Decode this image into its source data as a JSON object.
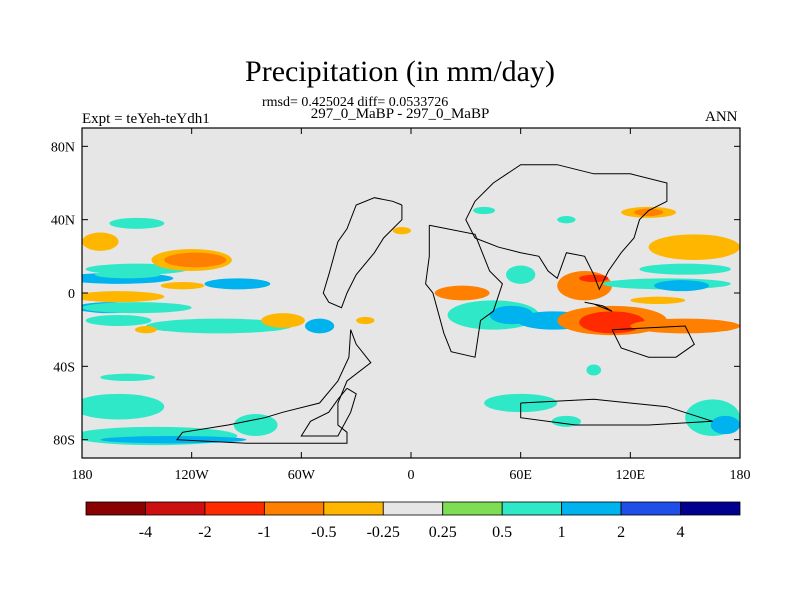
{
  "chart_data": {
    "type": "heatmap",
    "title": "Precipitation (in mm/day)",
    "stats_line": "rmsd= 0.425024 diff= 0.0533726",
    "subtitle": "297_0_MaBP - 297_0_MaBP",
    "left_label": "Expt = teYeh-teYdh1",
    "right_label": "ANN",
    "xlim": [
      -180,
      180
    ],
    "ylim": [
      -90,
      90
    ],
    "x_ticks": [
      {
        "value": -180,
        "label": "180"
      },
      {
        "value": -120,
        "label": "120W"
      },
      {
        "value": -60,
        "label": "60W"
      },
      {
        "value": 0,
        "label": "0"
      },
      {
        "value": 60,
        "label": "60E"
      },
      {
        "value": 120,
        "label": "120E"
      },
      {
        "value": 180,
        "label": "180"
      }
    ],
    "y_ticks": [
      {
        "value": 80,
        "label": "80N"
      },
      {
        "value": 40,
        "label": "40N"
      },
      {
        "value": 0,
        "label": "0"
      },
      {
        "value": -40,
        "label": "40S"
      },
      {
        "value": -80,
        "label": "80S"
      }
    ],
    "colorbar": {
      "labels": [
        "-4",
        "-2",
        "-1",
        "-0.5",
        "-0.25",
        "0.25",
        "0.5",
        "1",
        "2",
        "4"
      ],
      "colors": [
        "#8b0000",
        "#cc1010",
        "#ff2a00",
        "#ff7f00",
        "#ffb600",
        "#e6e6e6",
        "#7ddd55",
        "#2fe8c8",
        "#00b2ee",
        "#1f4ee8",
        "#000090"
      ]
    },
    "fields": [
      {
        "lon": -160,
        "lat": 8,
        "rx": 30,
        "ry": 3,
        "level": "1"
      },
      {
        "lon": -155,
        "lat": 10,
        "rx": 18,
        "ry": 2,
        "level": "0.5"
      },
      {
        "lon": -150,
        "lat": 13,
        "rx": 28,
        "ry": 3,
        "level": "0.5"
      },
      {
        "lon": -165,
        "lat": -8,
        "rx": 18,
        "ry": 3,
        "level": "1"
      },
      {
        "lon": -150,
        "lat": -8,
        "rx": 30,
        "ry": 3,
        "level": "0.5"
      },
      {
        "lon": -160,
        "lat": -2,
        "rx": 25,
        "ry": 3,
        "level": "-0.25"
      },
      {
        "lon": -125,
        "lat": 4,
        "rx": 12,
        "ry": 2,
        "level": "-0.25"
      },
      {
        "lon": -120,
        "lat": 18,
        "rx": 22,
        "ry": 6,
        "level": "-0.25"
      },
      {
        "lon": -118,
        "lat": 18,
        "rx": 17,
        "ry": 4,
        "level": "-0.5"
      },
      {
        "lon": -95,
        "lat": 5,
        "rx": 18,
        "ry": 3,
        "level": "1"
      },
      {
        "lon": -105,
        "lat": -18,
        "rx": 40,
        "ry": 4,
        "level": "0.5"
      },
      {
        "lon": -160,
        "lat": -15,
        "rx": 18,
        "ry": 3,
        "level": "0.5"
      },
      {
        "lon": -170,
        "lat": 28,
        "rx": 10,
        "ry": 5,
        "level": "-0.25"
      },
      {
        "lon": -150,
        "lat": 38,
        "rx": 15,
        "ry": 3,
        "level": "0.5"
      },
      {
        "lon": -160,
        "lat": -62,
        "rx": 25,
        "ry": 7,
        "level": "0.5"
      },
      {
        "lon": -140,
        "lat": -78,
        "rx": 45,
        "ry": 5,
        "level": "0.5"
      },
      {
        "lon": -130,
        "lat": -80,
        "rx": 40,
        "ry": 2,
        "level": "1"
      },
      {
        "lon": -85,
        "lat": -72,
        "rx": 12,
        "ry": 6,
        "level": "0.5"
      },
      {
        "lon": -155,
        "lat": -46,
        "rx": 15,
        "ry": 2,
        "level": "0.5"
      },
      {
        "lon": -70,
        "lat": -15,
        "rx": 12,
        "ry": 4,
        "level": "-0.25"
      },
      {
        "lon": -50,
        "lat": -18,
        "rx": 8,
        "ry": 4,
        "level": "1"
      },
      {
        "lon": -25,
        "lat": -15,
        "rx": 5,
        "ry": 2,
        "level": "-0.25"
      },
      {
        "lon": -5,
        "lat": 34,
        "rx": 5,
        "ry": 2,
        "level": "-0.25"
      },
      {
        "lon": 28,
        "lat": 0,
        "rx": 15,
        "ry": 4,
        "level": "-0.5"
      },
      {
        "lon": 45,
        "lat": -12,
        "rx": 25,
        "ry": 8,
        "level": "0.5"
      },
      {
        "lon": 55,
        "lat": -12,
        "rx": 12,
        "ry": 5,
        "level": "1"
      },
      {
        "lon": 60,
        "lat": 10,
        "rx": 8,
        "ry": 5,
        "level": "0.5"
      },
      {
        "lon": 78,
        "lat": -15,
        "rx": 20,
        "ry": 5,
        "level": "1"
      },
      {
        "lon": 95,
        "lat": 4,
        "rx": 15,
        "ry": 8,
        "level": "-0.5"
      },
      {
        "lon": 110,
        "lat": -15,
        "rx": 30,
        "ry": 8,
        "level": "-0.5"
      },
      {
        "lon": 110,
        "lat": -16,
        "rx": 18,
        "ry": 6,
        "level": "-1"
      },
      {
        "lon": 150,
        "lat": -18,
        "rx": 30,
        "ry": 4,
        "level": "-0.5"
      },
      {
        "lon": 140,
        "lat": 5,
        "rx": 35,
        "ry": 3,
        "level": "0.5"
      },
      {
        "lon": 150,
        "lat": 13,
        "rx": 25,
        "ry": 3,
        "level": "0.5"
      },
      {
        "lon": 148,
        "lat": 4,
        "rx": 15,
        "ry": 3,
        "level": "1"
      },
      {
        "lon": 155,
        "lat": 25,
        "rx": 25,
        "ry": 7,
        "level": "-0.25"
      },
      {
        "lon": 135,
        "lat": -4,
        "rx": 15,
        "ry": 2,
        "level": "-0.25"
      },
      {
        "lon": 130,
        "lat": 44,
        "rx": 15,
        "ry": 3,
        "level": "-0.25"
      },
      {
        "lon": 130,
        "lat": 44,
        "rx": 8,
        "ry": 2,
        "level": "-0.5"
      },
      {
        "lon": 100,
        "lat": 8,
        "rx": 8,
        "ry": 2,
        "level": "-1"
      },
      {
        "lon": 60,
        "lat": -60,
        "rx": 20,
        "ry": 5,
        "level": "0.5"
      },
      {
        "lon": 165,
        "lat": -68,
        "rx": 15,
        "ry": 10,
        "level": "0.5"
      },
      {
        "lon": 172,
        "lat": -72,
        "rx": 8,
        "ry": 5,
        "level": "1"
      },
      {
        "lon": 100,
        "lat": -42,
        "rx": 4,
        "ry": 3,
        "level": "0.5"
      },
      {
        "lon": 40,
        "lat": 45,
        "rx": 6,
        "ry": 2,
        "level": "0.5"
      },
      {
        "lon": 85,
        "lat": 40,
        "rx": 5,
        "ry": 2,
        "level": "0.5"
      },
      {
        "lon": -145,
        "lat": -20,
        "rx": 6,
        "ry": 2,
        "level": "-0.25"
      },
      {
        "lon": 85,
        "lat": -70,
        "rx": 8,
        "ry": 3,
        "level": "0.5"
      }
    ],
    "coastlines": [
      [
        [
          -33,
          -20
        ],
        [
          -34,
          -35
        ],
        [
          -40,
          -48
        ],
        [
          -50,
          -60
        ],
        [
          -70,
          -65
        ],
        [
          -80,
          -68
        ],
        [
          -100,
          -72
        ],
        [
          -125,
          -76
        ],
        [
          -128,
          -80
        ],
        [
          -90,
          -82
        ],
        [
          -60,
          -82
        ],
        [
          -35,
          -82
        ],
        [
          -35,
          -76
        ],
        [
          -40,
          -72
        ],
        [
          -40,
          -60
        ],
        [
          -35,
          -48
        ],
        [
          -22,
          -38
        ],
        [
          -30,
          -28
        ],
        [
          -33,
          -20
        ]
      ],
      [
        [
          -35,
          -52
        ],
        [
          -40,
          -58
        ],
        [
          -45,
          -65
        ],
        [
          -55,
          -70
        ],
        [
          -60,
          -78
        ],
        [
          -40,
          -78
        ],
        [
          -33,
          -65
        ],
        [
          -30,
          -55
        ],
        [
          -35,
          -52
        ]
      ],
      [
        [
          -5,
          48
        ],
        [
          -5,
          40
        ],
        [
          -15,
          30
        ],
        [
          -20,
          22
        ],
        [
          -30,
          10
        ],
        [
          -35,
          0
        ],
        [
          -38,
          -8
        ],
        [
          -45,
          -5
        ],
        [
          -48,
          0
        ],
        [
          -45,
          10
        ],
        [
          -40,
          28
        ],
        [
          -35,
          35
        ],
        [
          -30,
          48
        ],
        [
          -20,
          52
        ],
        [
          -10,
          50
        ],
        [
          -5,
          48
        ]
      ],
      [
        [
          10,
          37
        ],
        [
          35,
          32
        ],
        [
          43,
          12
        ],
        [
          50,
          5
        ],
        [
          45,
          -10
        ],
        [
          38,
          -15
        ],
        [
          35,
          -35
        ],
        [
          22,
          -32
        ],
        [
          18,
          -22
        ],
        [
          12,
          0
        ],
        [
          8,
          5
        ],
        [
          10,
          20
        ],
        [
          10,
          37
        ]
      ],
      [
        [
          35,
          30
        ],
        [
          48,
          25
        ],
        [
          60,
          22
        ],
        [
          70,
          20
        ],
        [
          75,
          12
        ],
        [
          80,
          8
        ],
        [
          85,
          22
        ],
        [
          95,
          20
        ],
        [
          100,
          10
        ],
        [
          103,
          2
        ],
        [
          108,
          12
        ],
        [
          115,
          22
        ],
        [
          122,
          30
        ],
        [
          125,
          40
        ],
        [
          130,
          45
        ],
        [
          140,
          50
        ],
        [
          140,
          60
        ],
        [
          120,
          65
        ],
        [
          100,
          65
        ],
        [
          80,
          70
        ],
        [
          60,
          70
        ],
        [
          45,
          60
        ],
        [
          35,
          50
        ],
        [
          30,
          40
        ],
        [
          35,
          30
        ]
      ],
      [
        [
          95,
          -5
        ],
        [
          105,
          -7
        ],
        [
          110,
          -10
        ],
        [
          100,
          -6
        ],
        [
          95,
          -5
        ]
      ],
      [
        [
          110,
          -20
        ],
        [
          150,
          -18
        ],
        [
          155,
          -28
        ],
        [
          145,
          -35
        ],
        [
          130,
          -35
        ],
        [
          115,
          -30
        ],
        [
          110,
          -20
        ]
      ],
      [
        [
          60,
          -60
        ],
        [
          100,
          -58
        ],
        [
          140,
          -62
        ],
        [
          165,
          -70
        ],
        [
          130,
          -72
        ],
        [
          90,
          -72
        ],
        [
          60,
          -68
        ],
        [
          60,
          -60
        ]
      ]
    ]
  }
}
